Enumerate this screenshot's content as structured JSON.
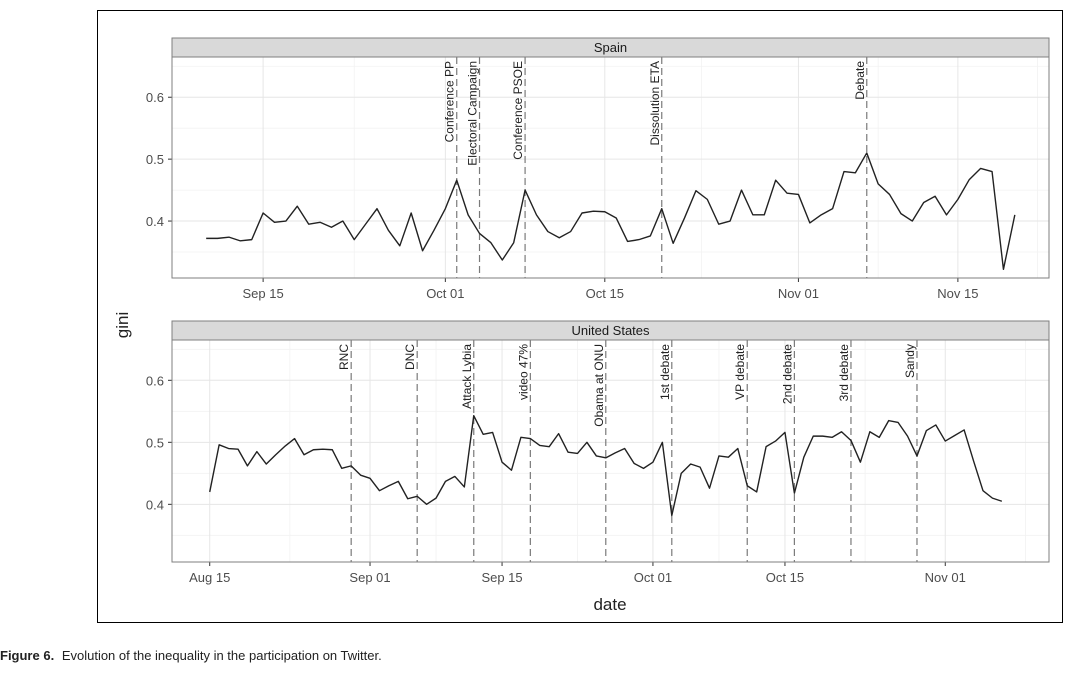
{
  "axis_titles": {
    "x": "date",
    "y": "gini"
  },
  "caption": {
    "label": "Figure 6.",
    "text": "Evolution of the inequality in the participation on Twitter."
  },
  "chart_data": [
    {
      "type": "line",
      "title": "Spain",
      "color": "#222222",
      "grid": true,
      "xlim": [
        "Sep 07",
        "Nov 23"
      ],
      "xticks": [
        "Sep 15",
        "Oct 01",
        "Oct 15",
        "Nov 01",
        "Nov 15"
      ],
      "ylim": [
        0.308,
        0.665
      ],
      "yticks": [
        0.4,
        0.5,
        0.6
      ],
      "x": [
        "Sep 10",
        "Sep 11",
        "Sep 12",
        "Sep 13",
        "Sep 14",
        "Sep 15",
        "Sep 16",
        "Sep 17",
        "Sep 18",
        "Sep 19",
        "Sep 20",
        "Sep 21",
        "Sep 22",
        "Sep 23",
        "Sep 24",
        "Sep 25",
        "Sep 26",
        "Sep 27",
        "Sep 28",
        "Sep 29",
        "Sep 30",
        "Oct 01",
        "Oct 02",
        "Oct 03",
        "Oct 04",
        "Oct 05",
        "Oct 06",
        "Oct 07",
        "Oct 08",
        "Oct 09",
        "Oct 10",
        "Oct 11",
        "Oct 12",
        "Oct 13",
        "Oct 14",
        "Oct 15",
        "Oct 16",
        "Oct 17",
        "Oct 18",
        "Oct 19",
        "Oct 20",
        "Oct 21",
        "Oct 22",
        "Oct 23",
        "Oct 24",
        "Oct 25",
        "Oct 26",
        "Oct 27",
        "Oct 28",
        "Oct 29",
        "Oct 30",
        "Oct 31",
        "Nov 01",
        "Nov 02",
        "Nov 03",
        "Nov 04",
        "Nov 05",
        "Nov 06",
        "Nov 07",
        "Nov 08",
        "Nov 09",
        "Nov 10",
        "Nov 11",
        "Nov 12",
        "Nov 13",
        "Nov 14",
        "Nov 15",
        "Nov 16",
        "Nov 17",
        "Nov 18",
        "Nov 19",
        "Nov 20"
      ],
      "values": [
        0.372,
        0.372,
        0.374,
        0.368,
        0.37,
        0.413,
        0.398,
        0.4,
        0.424,
        0.395,
        0.398,
        0.39,
        0.4,
        0.37,
        0.395,
        0.42,
        0.385,
        0.36,
        0.413,
        0.352,
        0.385,
        0.42,
        0.466,
        0.41,
        0.38,
        0.365,
        0.337,
        0.365,
        0.45,
        0.41,
        0.383,
        0.373,
        0.383,
        0.413,
        0.416,
        0.415,
        0.405,
        0.367,
        0.37,
        0.376,
        0.42,
        0.364,
        0.405,
        0.449,
        0.435,
        0.395,
        0.4,
        0.45,
        0.41,
        0.41,
        0.466,
        0.445,
        0.443,
        0.397,
        0.41,
        0.42,
        0.48,
        0.478,
        0.51,
        0.46,
        0.443,
        0.412,
        0.4,
        0.43,
        0.44,
        0.41,
        0.435,
        0.467,
        0.485,
        0.48,
        0.322,
        0.41
      ],
      "annotations": [
        {
          "x": "Oct 02",
          "label": "Conference PP"
        },
        {
          "x": "Oct 04",
          "label": "Electoral Campaign"
        },
        {
          "x": "Oct 08",
          "label": "Conference PSOE"
        },
        {
          "x": "Oct 20",
          "label": "Dissolution ETA"
        },
        {
          "x": "Nov 07",
          "label": "Debate"
        }
      ]
    },
    {
      "type": "line",
      "title": "United States",
      "color": "#222222",
      "grid": true,
      "xlim": [
        "Aug 11",
        "Nov 12"
      ],
      "xticks": [
        "Aug 15",
        "Sep 01",
        "Sep 15",
        "Oct 01",
        "Oct 15",
        "Nov 01"
      ],
      "ylim": [
        0.307,
        0.665
      ],
      "yticks": [
        0.4,
        0.5,
        0.6
      ],
      "x": [
        "Aug 15",
        "Aug 16",
        "Aug 17",
        "Aug 18",
        "Aug 19",
        "Aug 20",
        "Aug 21",
        "Aug 22",
        "Aug 23",
        "Aug 24",
        "Aug 25",
        "Aug 26",
        "Aug 27",
        "Aug 28",
        "Aug 29",
        "Aug 30",
        "Aug 31",
        "Sep 01",
        "Sep 02",
        "Sep 03",
        "Sep 04",
        "Sep 05",
        "Sep 06",
        "Sep 07",
        "Sep 08",
        "Sep 09",
        "Sep 10",
        "Sep 11",
        "Sep 12",
        "Sep 13",
        "Sep 14",
        "Sep 15",
        "Sep 16",
        "Sep 17",
        "Sep 18",
        "Sep 19",
        "Sep 20",
        "Sep 21",
        "Sep 22",
        "Sep 23",
        "Sep 24",
        "Sep 25",
        "Sep 26",
        "Sep 27",
        "Sep 28",
        "Sep 29",
        "Sep 30",
        "Oct 01",
        "Oct 02",
        "Oct 03",
        "Oct 04",
        "Oct 05",
        "Oct 06",
        "Oct 07",
        "Oct 08",
        "Oct 09",
        "Oct 10",
        "Oct 11",
        "Oct 12",
        "Oct 13",
        "Oct 14",
        "Oct 15",
        "Oct 16",
        "Oct 17",
        "Oct 18",
        "Oct 19",
        "Oct 20",
        "Oct 21",
        "Oct 22",
        "Oct 23",
        "Oct 24",
        "Oct 25",
        "Oct 26",
        "Oct 27",
        "Oct 28",
        "Oct 29",
        "Oct 30",
        "Oct 31",
        "Nov 01",
        "Nov 02",
        "Nov 03",
        "Nov 04",
        "Nov 05",
        "Nov 06",
        "Nov 07"
      ],
      "values": [
        0.42,
        0.496,
        0.49,
        0.489,
        0.462,
        0.485,
        0.465,
        0.48,
        0.494,
        0.506,
        0.48,
        0.488,
        0.489,
        0.488,
        0.458,
        0.462,
        0.447,
        0.442,
        0.422,
        0.43,
        0.437,
        0.409,
        0.413,
        0.4,
        0.41,
        0.437,
        0.445,
        0.428,
        0.543,
        0.513,
        0.516,
        0.468,
        0.455,
        0.508,
        0.506,
        0.495,
        0.493,
        0.514,
        0.484,
        0.482,
        0.5,
        0.478,
        0.475,
        0.483,
        0.49,
        0.466,
        0.458,
        0.468,
        0.5,
        0.382,
        0.45,
        0.465,
        0.46,
        0.426,
        0.478,
        0.476,
        0.49,
        0.43,
        0.42,
        0.493,
        0.502,
        0.516,
        0.418,
        0.476,
        0.51,
        0.51,
        0.508,
        0.517,
        0.503,
        0.468,
        0.517,
        0.508,
        0.535,
        0.532,
        0.51,
        0.478,
        0.519,
        0.528,
        0.502,
        0.511,
        0.52,
        0.47,
        0.422,
        0.41,
        0.405
      ],
      "annotations": [
        {
          "x": "Aug 30",
          "label": "RNC"
        },
        {
          "x": "Sep 06",
          "label": "DNC"
        },
        {
          "x": "Sep 12",
          "label": "Attack Lybia"
        },
        {
          "x": "Sep 18",
          "label": "video 47%"
        },
        {
          "x": "Sep 26",
          "label": "Obama at ONU"
        },
        {
          "x": "Oct 03",
          "label": "1st debate"
        },
        {
          "x": "Oct 11",
          "label": "VP debate"
        },
        {
          "x": "Oct 16",
          "label": "2nd debate"
        },
        {
          "x": "Oct 22",
          "label": "3rd debate"
        },
        {
          "x": "Oct 29",
          "label": "Sandy"
        }
      ]
    }
  ]
}
